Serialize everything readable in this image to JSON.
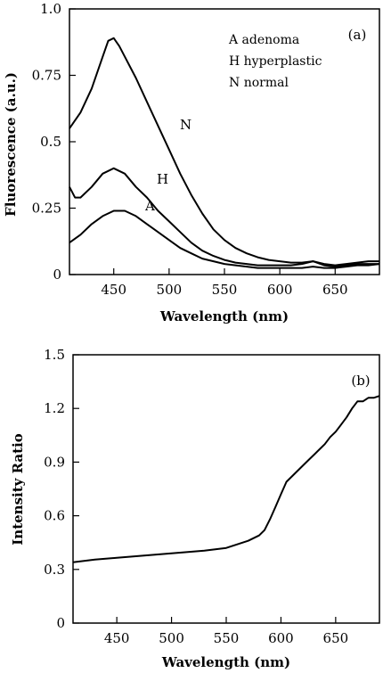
{
  "chart_data": [
    {
      "type": "line",
      "panel_label": "(a)",
      "xlabel": "Wavelength (nm)",
      "ylabel": "Fluorescence (a.u.)",
      "xlim": [
        410,
        690
      ],
      "ylim": [
        0,
        1.0
      ],
      "xticks": [
        450,
        500,
        550,
        600,
        650
      ],
      "yticks": [
        0,
        0.25,
        0.5,
        0.75,
        1.0
      ],
      "ytick_labels": [
        "0",
        "0.25",
        "0.5",
        "0.75",
        "1.0"
      ],
      "legend": [
        "A adenoma",
        "H hyperplastic",
        "N normal"
      ],
      "series": [
        {
          "name": "N",
          "x": [
            410,
            420,
            430,
            440,
            445,
            450,
            455,
            460,
            470,
            480,
            490,
            500,
            510,
            520,
            530,
            540,
            550,
            560,
            570,
            580,
            590,
            600,
            610,
            620,
            630,
            640,
            650,
            660,
            670,
            680,
            690
          ],
          "y": [
            0.55,
            0.61,
            0.7,
            0.82,
            0.88,
            0.89,
            0.86,
            0.82,
            0.74,
            0.65,
            0.56,
            0.47,
            0.38,
            0.3,
            0.23,
            0.17,
            0.13,
            0.1,
            0.08,
            0.065,
            0.055,
            0.05,
            0.045,
            0.045,
            0.05,
            0.04,
            0.035,
            0.04,
            0.045,
            0.05,
            0.05
          ]
        },
        {
          "name": "H",
          "x": [
            410,
            415,
            420,
            430,
            440,
            450,
            455,
            460,
            470,
            480,
            490,
            500,
            510,
            520,
            530,
            540,
            550,
            560,
            570,
            580,
            590,
            600,
            610,
            620,
            630,
            640,
            650,
            660,
            670,
            680,
            690
          ],
          "y": [
            0.33,
            0.29,
            0.29,
            0.33,
            0.38,
            0.4,
            0.39,
            0.38,
            0.33,
            0.29,
            0.24,
            0.2,
            0.16,
            0.12,
            0.09,
            0.07,
            0.055,
            0.045,
            0.04,
            0.035,
            0.035,
            0.035,
            0.035,
            0.04,
            0.05,
            0.035,
            0.03,
            0.035,
            0.04,
            0.04,
            0.04
          ]
        },
        {
          "name": "A",
          "x": [
            410,
            420,
            430,
            440,
            450,
            460,
            470,
            480,
            490,
            500,
            510,
            520,
            530,
            540,
            550,
            560,
            570,
            580,
            590,
            600,
            610,
            620,
            630,
            640,
            650,
            660,
            670,
            680,
            690
          ],
          "y": [
            0.12,
            0.15,
            0.19,
            0.22,
            0.24,
            0.24,
            0.22,
            0.19,
            0.16,
            0.13,
            0.1,
            0.08,
            0.06,
            0.05,
            0.04,
            0.035,
            0.03,
            0.025,
            0.025,
            0.025,
            0.025,
            0.025,
            0.03,
            0.025,
            0.025,
            0.03,
            0.035,
            0.035,
            0.04
          ]
        }
      ]
    },
    {
      "type": "line",
      "panel_label": "(b)",
      "xlabel": "Wavelength (nm)",
      "ylabel": "Intensity Ratio",
      "xlim": [
        410,
        690
      ],
      "ylim": [
        0,
        1.5
      ],
      "xticks": [
        450,
        500,
        550,
        600,
        650
      ],
      "yticks": [
        0,
        0.3,
        0.6,
        0.9,
        1.2,
        1.5
      ],
      "ytick_labels": [
        "0",
        "0.3",
        "0.6",
        "0.9",
        "1.2",
        "1.5"
      ],
      "series": [
        {
          "name": "",
          "x": [
            410,
            430,
            450,
            470,
            490,
            510,
            530,
            550,
            560,
            570,
            580,
            585,
            590,
            595,
            600,
            605,
            610,
            615,
            620,
            625,
            630,
            635,
            640,
            645,
            650,
            655,
            660,
            665,
            670,
            675,
            680,
            685,
            690
          ],
          "y": [
            0.34,
            0.355,
            0.365,
            0.375,
            0.385,
            0.395,
            0.405,
            0.42,
            0.44,
            0.46,
            0.49,
            0.52,
            0.58,
            0.65,
            0.72,
            0.79,
            0.82,
            0.85,
            0.88,
            0.91,
            0.94,
            0.97,
            1.0,
            1.04,
            1.07,
            1.11,
            1.15,
            1.2,
            1.24,
            1.24,
            1.26,
            1.26,
            1.27
          ]
        }
      ]
    }
  ]
}
